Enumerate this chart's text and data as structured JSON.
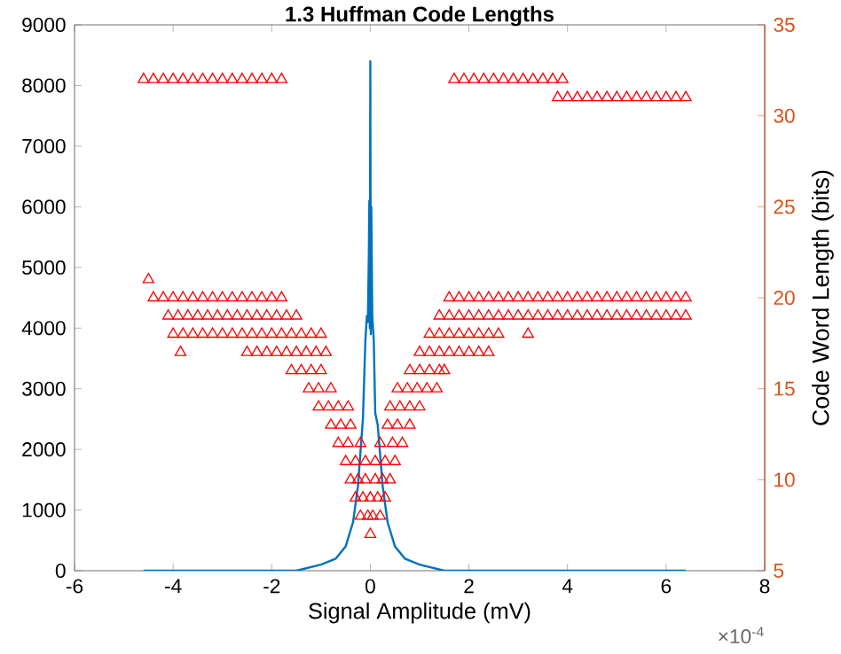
{
  "chart_data": {
    "type": "line",
    "title": "1.3 Huffman Code Lengths",
    "xlabel": "Signal Amplitude (mV)",
    "y2label": "Code Word Length (bits)",
    "xlim": [
      -6,
      8
    ],
    "xticks": [
      -6,
      -4,
      -2,
      0,
      2,
      4,
      6,
      8
    ],
    "ylim": [
      0,
      9000
    ],
    "yticks": [
      0,
      1000,
      2000,
      3000,
      4000,
      5000,
      6000,
      7000,
      8000,
      9000
    ],
    "y2lim": [
      5,
      35
    ],
    "y2ticks": [
      5,
      10,
      15,
      20,
      25,
      30,
      35
    ],
    "annotations": [
      "×10$^{-4}$"
    ],
    "series": [
      {
        "type": "line",
        "color": "#0072bd",
        "x": [
          -4.6,
          -3,
          -2,
          -1.5,
          -1,
          -0.7,
          -0.5,
          -0.35,
          -0.25,
          -0.15,
          -0.1,
          -0.07,
          -0.05,
          -0.03,
          -0.02,
          -0.01,
          0,
          0.01,
          0.02,
          0.04,
          0.07,
          0.1,
          0.15,
          0.25,
          0.35,
          0.5,
          0.7,
          1,
          1.5,
          2,
          3,
          4,
          5,
          6.4
        ],
        "values": [
          0,
          0,
          0,
          0,
          100,
          200,
          400,
          800,
          1400,
          2500,
          3800,
          4200,
          4100,
          5200,
          6100,
          4000,
          8400,
          3900,
          6000,
          4200,
          3800,
          2600,
          2400,
          1400,
          800,
          400,
          200,
          100,
          0,
          0,
          0,
          0,
          0,
          0
        ]
      },
      {
        "type": "scatter",
        "axis": "y2",
        "marker": "triangle",
        "color": "#ff0000",
        "x": [
          -4.6,
          -4.4,
          -4.2,
          -4.0,
          -3.8,
          -3.6,
          -3.4,
          -3.2,
          -3.0,
          -2.8,
          -2.6,
          -2.4,
          -2.2,
          -2.0,
          -1.8,
          1.7,
          1.9,
          2.1,
          2.3,
          2.5,
          2.7,
          2.9,
          3.1,
          3.3,
          3.5,
          3.7,
          3.9,
          3.8,
          4.0,
          4.2,
          4.4,
          4.6,
          4.8,
          5.0,
          5.2,
          5.4,
          5.6,
          5.8,
          6.0,
          6.2,
          6.4,
          -4.5,
          -4.4,
          -4.2,
          -4.0,
          -3.8,
          -3.6,
          -3.4,
          -3.2,
          -3.0,
          -2.8,
          -2.6,
          -2.4,
          -2.2,
          -2.0,
          -1.8,
          1.6,
          1.8,
          2.0,
          2.2,
          2.4,
          2.6,
          2.8,
          3.0,
          3.2,
          3.4,
          3.6,
          3.8,
          4.0,
          4.2,
          4.4,
          4.6,
          4.8,
          5.0,
          5.2,
          5.4,
          5.6,
          5.8,
          6.0,
          6.2,
          6.4,
          -4.1,
          -3.9,
          -3.7,
          -3.5,
          -3.3,
          -3.1,
          -2.9,
          -2.7,
          -2.5,
          -2.3,
          -2.1,
          -1.9,
          -1.7,
          -1.5,
          1.4,
          1.6,
          1.8,
          2.0,
          2.2,
          2.4,
          2.6,
          2.8,
          3.0,
          3.2,
          3.4,
          3.6,
          3.8,
          4.0,
          4.2,
          4.4,
          4.6,
          4.8,
          5.0,
          5.2,
          5.4,
          5.6,
          5.8,
          6.0,
          6.2,
          6.4,
          -4.0,
          -3.8,
          -3.6,
          -3.4,
          -3.2,
          -3.0,
          -2.8,
          -2.6,
          -2.4,
          -2.2,
          -2.0,
          -1.8,
          -1.6,
          -1.4,
          -1.2,
          -1.0,
          1.2,
          1.4,
          1.6,
          1.8,
          2.0,
          2.2,
          2.4,
          2.6,
          3.2,
          -3.85,
          -2.5,
          -2.3,
          -2.1,
          -1.9,
          -1.7,
          -1.5,
          -1.3,
          -1.1,
          -0.9,
          1.0,
          1.2,
          1.4,
          1.6,
          1.8,
          2.0,
          2.2,
          2.4,
          -1.6,
          -1.4,
          -1.2,
          -1.0,
          0.8,
          1.0,
          1.2,
          1.4,
          1.5,
          -1.25,
          -1.05,
          -0.8,
          0.55,
          0.75,
          0.95,
          1.15,
          1.35,
          -1.05,
          -0.85,
          -0.65,
          -0.45,
          0.4,
          0.6,
          0.8,
          1.0,
          -0.8,
          -0.6,
          -0.4,
          0.35,
          0.55,
          0.8,
          -0.65,
          -0.45,
          -0.2,
          0.2,
          0.45,
          0.65,
          -0.5,
          -0.3,
          -0.1,
          0.1,
          0.3,
          0.5,
          -0.4,
          -0.25,
          -0.1,
          0.1,
          0.25,
          0.4,
          -0.3,
          -0.15,
          0,
          0.15,
          0.3,
          -0.2,
          -0.05,
          0.05,
          0.2,
          0
        ],
        "values": [
          32,
          32,
          32,
          32,
          32,
          32,
          32,
          32,
          32,
          32,
          32,
          32,
          32,
          32,
          32,
          32,
          32,
          32,
          32,
          32,
          32,
          32,
          32,
          32,
          32,
          32,
          32,
          31,
          31,
          31,
          31,
          31,
          31,
          31,
          31,
          31,
          31,
          31,
          31,
          31,
          31,
          21,
          20,
          20,
          20,
          20,
          20,
          20,
          20,
          20,
          20,
          20,
          20,
          20,
          20,
          20,
          20,
          20,
          20,
          20,
          20,
          20,
          20,
          20,
          20,
          20,
          20,
          20,
          20,
          20,
          20,
          20,
          20,
          20,
          20,
          20,
          20,
          20,
          20,
          20,
          20,
          19,
          19,
          19,
          19,
          19,
          19,
          19,
          19,
          19,
          19,
          19,
          19,
          19,
          19,
          19,
          19,
          19,
          19,
          19,
          19,
          19,
          19,
          19,
          19,
          19,
          19,
          19,
          19,
          19,
          19,
          19,
          19,
          19,
          19,
          19,
          19,
          19,
          19,
          19,
          19,
          18,
          18,
          18,
          18,
          18,
          18,
          18,
          18,
          18,
          18,
          18,
          18,
          18,
          18,
          18,
          18,
          18,
          18,
          18,
          18,
          18,
          18,
          18,
          18,
          18,
          17,
          17,
          17,
          17,
          17,
          17,
          17,
          17,
          17,
          17,
          17,
          17,
          17,
          17,
          17,
          17,
          17,
          17,
          16,
          16,
          16,
          16,
          16,
          16,
          16,
          16,
          16,
          15,
          15,
          15,
          15,
          15,
          15,
          15,
          15,
          14,
          14,
          14,
          14,
          14,
          14,
          14,
          14,
          13,
          13,
          13,
          13,
          13,
          13,
          12,
          12,
          12,
          12,
          12,
          12,
          11,
          11,
          11,
          11,
          11,
          11,
          10,
          10,
          10,
          10,
          10,
          10,
          9,
          9,
          9,
          9,
          9,
          8,
          8,
          8,
          8,
          7
        ]
      }
    ]
  }
}
